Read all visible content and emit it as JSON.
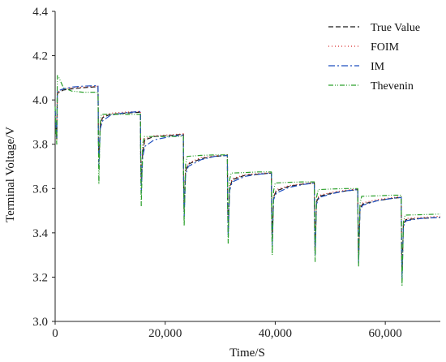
{
  "chart_data": {
    "type": "line",
    "xlabel": "Time/S",
    "ylabel": "Terminal Voltage/V",
    "xlim": [
      0,
      70000
    ],
    "ylim": [
      3.0,
      4.4
    ],
    "x_ticks": [
      {
        "value": 0,
        "label": "0"
      },
      {
        "value": 20000,
        "label": "20,000"
      },
      {
        "value": 40000,
        "label": "40,000"
      },
      {
        "value": 60000,
        "label": "60,000"
      }
    ],
    "y_ticks": [
      {
        "value": 3.0,
        "label": "3.0"
      },
      {
        "value": 3.2,
        "label": "3.2"
      },
      {
        "value": 3.4,
        "label": "3.4"
      },
      {
        "value": 3.6,
        "label": "3.6"
      },
      {
        "value": 3.8,
        "label": "3.8"
      },
      {
        "value": 4.0,
        "label": "4.0"
      },
      {
        "value": 4.2,
        "label": "4.2"
      },
      {
        "value": 4.4,
        "label": "4.4"
      }
    ],
    "legend_position": "top-right",
    "grid": false,
    "series": [
      {
        "name": "True Value",
        "color": "#1a1a1a",
        "dash": "6 3",
        "points": [
          [
            0,
            3.95
          ],
          [
            150,
            3.88
          ],
          [
            300,
            3.82
          ],
          [
            400,
            4.03
          ],
          [
            1500,
            4.045
          ],
          [
            3000,
            4.05
          ],
          [
            5000,
            4.055
          ],
          [
            7800,
            4.06
          ],
          [
            7850,
            3.85
          ],
          [
            7950,
            3.72
          ],
          [
            8200,
            3.88
          ],
          [
            8600,
            3.92
          ],
          [
            10000,
            3.935
          ],
          [
            12500,
            3.94
          ],
          [
            15500,
            3.945
          ],
          [
            15550,
            3.76
          ],
          [
            15650,
            3.62
          ],
          [
            15900,
            3.76
          ],
          [
            16300,
            3.82
          ],
          [
            18000,
            3.835
          ],
          [
            21000,
            3.84
          ],
          [
            23300,
            3.845
          ],
          [
            23350,
            3.66
          ],
          [
            23450,
            3.5
          ],
          [
            23700,
            3.68
          ],
          [
            24200,
            3.71
          ],
          [
            26500,
            3.735
          ],
          [
            29000,
            3.745
          ],
          [
            31300,
            3.75
          ],
          [
            31350,
            3.56
          ],
          [
            31450,
            3.41
          ],
          [
            31700,
            3.6
          ],
          [
            32200,
            3.64
          ],
          [
            34500,
            3.66
          ],
          [
            37000,
            3.665
          ],
          [
            39300,
            3.67
          ],
          [
            39350,
            3.5
          ],
          [
            39450,
            3.36
          ],
          [
            39700,
            3.56
          ],
          [
            40200,
            3.59
          ],
          [
            42500,
            3.61
          ],
          [
            45000,
            3.62
          ],
          [
            47100,
            3.625
          ],
          [
            47150,
            3.46
          ],
          [
            47250,
            3.32
          ],
          [
            47500,
            3.54
          ],
          [
            48000,
            3.565
          ],
          [
            50500,
            3.58
          ],
          [
            53000,
            3.59
          ],
          [
            55000,
            3.595
          ],
          [
            55050,
            3.42
          ],
          [
            55150,
            3.28
          ],
          [
            55400,
            3.51
          ],
          [
            55900,
            3.53
          ],
          [
            58500,
            3.545
          ],
          [
            61000,
            3.555
          ],
          [
            62900,
            3.56
          ],
          [
            62950,
            3.36
          ],
          [
            63050,
            3.22
          ],
          [
            63300,
            3.44
          ],
          [
            63800,
            3.46
          ],
          [
            66500,
            3.465
          ],
          [
            70000,
            3.47
          ]
        ]
      },
      {
        "name": "FOIM",
        "color": "#d62728",
        "dash": "1 3",
        "points": [
          [
            0,
            3.95
          ],
          [
            150,
            3.88
          ],
          [
            300,
            3.82
          ],
          [
            400,
            4.035
          ],
          [
            1500,
            4.05
          ],
          [
            3000,
            4.055
          ],
          [
            5000,
            4.058
          ],
          [
            7800,
            4.062
          ],
          [
            7850,
            3.85
          ],
          [
            7950,
            3.72
          ],
          [
            8200,
            3.89
          ],
          [
            8600,
            3.925
          ],
          [
            10000,
            3.94
          ],
          [
            12500,
            3.945
          ],
          [
            15500,
            3.948
          ],
          [
            15550,
            3.76
          ],
          [
            15650,
            3.62
          ],
          [
            15900,
            3.77
          ],
          [
            16300,
            3.825
          ],
          [
            18000,
            3.838
          ],
          [
            21000,
            3.843
          ],
          [
            23300,
            3.847
          ],
          [
            23350,
            3.66
          ],
          [
            23450,
            3.5
          ],
          [
            23700,
            3.69
          ],
          [
            24200,
            3.715
          ],
          [
            26500,
            3.74
          ],
          [
            29000,
            3.748
          ],
          [
            31300,
            3.753
          ],
          [
            31350,
            3.56
          ],
          [
            31450,
            3.41
          ],
          [
            31700,
            3.61
          ],
          [
            32200,
            3.645
          ],
          [
            34500,
            3.663
          ],
          [
            37000,
            3.668
          ],
          [
            39300,
            3.672
          ],
          [
            39350,
            3.5
          ],
          [
            39450,
            3.36
          ],
          [
            39700,
            3.565
          ],
          [
            40200,
            3.595
          ],
          [
            42500,
            3.613
          ],
          [
            45000,
            3.622
          ],
          [
            47100,
            3.627
          ],
          [
            47150,
            3.46
          ],
          [
            47250,
            3.32
          ],
          [
            47500,
            3.545
          ],
          [
            48000,
            3.57
          ],
          [
            50500,
            3.584
          ],
          [
            53000,
            3.593
          ],
          [
            55000,
            3.598
          ],
          [
            55050,
            3.42
          ],
          [
            55150,
            3.28
          ],
          [
            55400,
            3.515
          ],
          [
            55900,
            3.535
          ],
          [
            58500,
            3.55
          ],
          [
            61000,
            3.558
          ],
          [
            62900,
            3.563
          ],
          [
            62950,
            3.36
          ],
          [
            63050,
            3.22
          ],
          [
            63300,
            3.445
          ],
          [
            63800,
            3.465
          ],
          [
            66500,
            3.47
          ],
          [
            70000,
            3.475
          ]
        ]
      },
      {
        "name": "IM",
        "color": "#1f4fbf",
        "dash": "8 3 2 3",
        "points": [
          [
            0,
            3.96
          ],
          [
            150,
            3.88
          ],
          [
            300,
            3.83
          ],
          [
            400,
            4.04
          ],
          [
            1500,
            4.05
          ],
          [
            3000,
            4.058
          ],
          [
            5000,
            4.062
          ],
          [
            7800,
            4.065
          ],
          [
            7850,
            3.85
          ],
          [
            7950,
            3.7
          ],
          [
            8200,
            3.87
          ],
          [
            8600,
            3.905
          ],
          [
            10000,
            3.93
          ],
          [
            12500,
            3.942
          ],
          [
            15500,
            3.948
          ],
          [
            15550,
            3.75
          ],
          [
            15650,
            3.58
          ],
          [
            15900,
            3.74
          ],
          [
            16300,
            3.79
          ],
          [
            18000,
            3.82
          ],
          [
            21000,
            3.835
          ],
          [
            23300,
            3.842
          ],
          [
            23350,
            3.65
          ],
          [
            23450,
            3.47
          ],
          [
            23700,
            3.66
          ],
          [
            24200,
            3.7
          ],
          [
            26500,
            3.73
          ],
          [
            29000,
            3.745
          ],
          [
            31300,
            3.75
          ],
          [
            31350,
            3.55
          ],
          [
            31450,
            3.38
          ],
          [
            31700,
            3.59
          ],
          [
            32200,
            3.63
          ],
          [
            34500,
            3.655
          ],
          [
            37000,
            3.665
          ],
          [
            39300,
            3.67
          ],
          [
            39350,
            3.49
          ],
          [
            39450,
            3.34
          ],
          [
            39700,
            3.55
          ],
          [
            40200,
            3.58
          ],
          [
            42500,
            3.605
          ],
          [
            45000,
            3.618
          ],
          [
            47100,
            3.625
          ],
          [
            47150,
            3.45
          ],
          [
            47250,
            3.3
          ],
          [
            47500,
            3.53
          ],
          [
            48000,
            3.56
          ],
          [
            50500,
            3.578
          ],
          [
            53000,
            3.59
          ],
          [
            55000,
            3.595
          ],
          [
            55050,
            3.41
          ],
          [
            55150,
            3.26
          ],
          [
            55400,
            3.5
          ],
          [
            55900,
            3.525
          ],
          [
            58500,
            3.545
          ],
          [
            61000,
            3.555
          ],
          [
            62900,
            3.56
          ],
          [
            62950,
            3.35
          ],
          [
            63050,
            3.19
          ],
          [
            63300,
            3.43
          ],
          [
            63800,
            3.455
          ],
          [
            66500,
            3.465
          ],
          [
            70000,
            3.47
          ]
        ]
      },
      {
        "name": "Thevenin",
        "color": "#2ca02c",
        "dash": "6 2 1 2 1 2",
        "points": [
          [
            0,
            3.97
          ],
          [
            150,
            3.85
          ],
          [
            300,
            3.8
          ],
          [
            400,
            4.11
          ],
          [
            700,
            4.1
          ],
          [
            1500,
            4.055
          ],
          [
            3000,
            4.04
          ],
          [
            5000,
            4.035
          ],
          [
            7800,
            4.035
          ],
          [
            7850,
            3.82
          ],
          [
            7950,
            3.62
          ],
          [
            8200,
            3.9
          ],
          [
            8400,
            3.935
          ],
          [
            10000,
            3.935
          ],
          [
            12500,
            3.935
          ],
          [
            15500,
            3.935
          ],
          [
            15550,
            3.72
          ],
          [
            15650,
            3.52
          ],
          [
            15900,
            3.8
          ],
          [
            16200,
            3.835
          ],
          [
            18000,
            3.835
          ],
          [
            21000,
            3.835
          ],
          [
            23300,
            3.835
          ],
          [
            23350,
            3.62
          ],
          [
            23450,
            3.43
          ],
          [
            23700,
            3.71
          ],
          [
            24000,
            3.745
          ],
          [
            26500,
            3.75
          ],
          [
            29000,
            3.752
          ],
          [
            31300,
            3.752
          ],
          [
            31350,
            3.53
          ],
          [
            31450,
            3.35
          ],
          [
            31700,
            3.64
          ],
          [
            32000,
            3.67
          ],
          [
            34500,
            3.672
          ],
          [
            37000,
            3.675
          ],
          [
            39300,
            3.675
          ],
          [
            39350,
            3.46
          ],
          [
            39450,
            3.3
          ],
          [
            39700,
            3.59
          ],
          [
            40000,
            3.625
          ],
          [
            42500,
            3.628
          ],
          [
            45000,
            3.63
          ],
          [
            47100,
            3.63
          ],
          [
            47150,
            3.42
          ],
          [
            47250,
            3.27
          ],
          [
            47500,
            3.56
          ],
          [
            47800,
            3.595
          ],
          [
            50500,
            3.598
          ],
          [
            53000,
            3.6
          ],
          [
            55000,
            3.6
          ],
          [
            55050,
            3.39
          ],
          [
            55150,
            3.25
          ],
          [
            55400,
            3.53
          ],
          [
            55700,
            3.565
          ],
          [
            58500,
            3.567
          ],
          [
            61000,
            3.57
          ],
          [
            62900,
            3.57
          ],
          [
            62950,
            3.32
          ],
          [
            63050,
            3.16
          ],
          [
            63300,
            3.45
          ],
          [
            63600,
            3.48
          ],
          [
            66500,
            3.482
          ],
          [
            70000,
            3.485
          ]
        ]
      }
    ]
  }
}
